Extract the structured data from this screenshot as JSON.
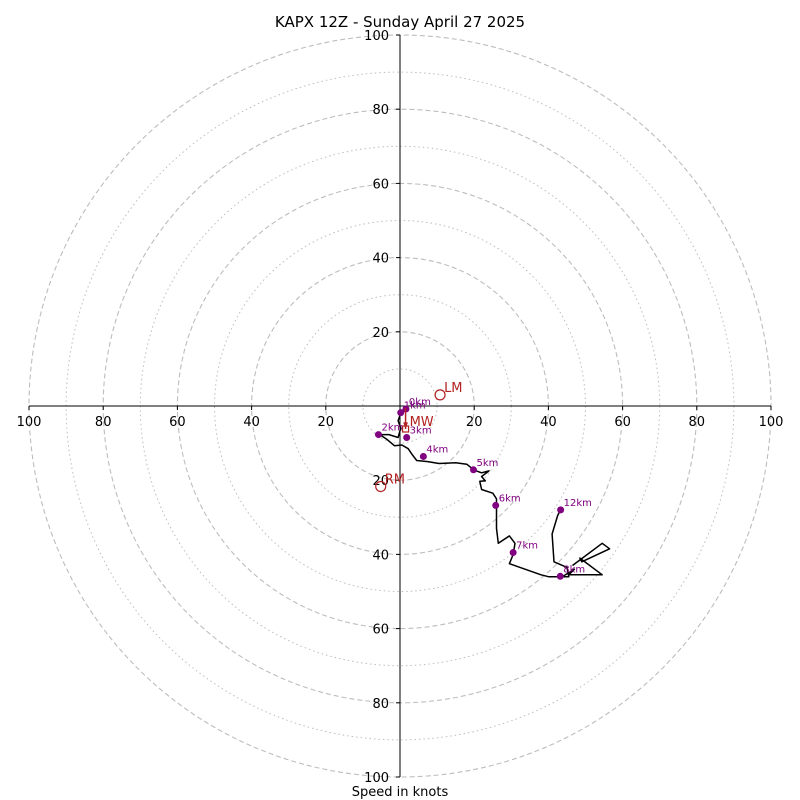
{
  "chart_data": {
    "type": "hodograph",
    "title": "KAPX 12Z - Sunday April 27 2025",
    "xlabel": "Speed in knots",
    "xlim": [
      -100,
      100
    ],
    "ylim": [
      -100,
      100
    ],
    "rings_major": [
      20,
      40,
      60,
      80,
      100
    ],
    "rings_minor": [
      10,
      30,
      50,
      70,
      90
    ],
    "x_ticks": [
      {
        "v": -100,
        "label": "100"
      },
      {
        "v": -80,
        "label": "80"
      },
      {
        "v": -60,
        "label": "60"
      },
      {
        "v": -40,
        "label": "40"
      },
      {
        "v": -20,
        "label": "20"
      },
      {
        "v": 20,
        "label": "20"
      },
      {
        "v": 40,
        "label": "40"
      },
      {
        "v": 60,
        "label": "60"
      },
      {
        "v": 80,
        "label": "80"
      },
      {
        "v": 100,
        "label": "100"
      }
    ],
    "y_ticks": [
      {
        "v": 100,
        "label": "100"
      },
      {
        "v": 80,
        "label": "80"
      },
      {
        "v": 60,
        "label": "60"
      },
      {
        "v": 40,
        "label": "40"
      },
      {
        "v": 20,
        "label": "20"
      },
      {
        "v": -20,
        "label": "20"
      },
      {
        "v": -40,
        "label": "40"
      },
      {
        "v": -60,
        "label": "60"
      },
      {
        "v": -80,
        "label": "80"
      },
      {
        "v": -100,
        "label": "100"
      }
    ],
    "grid": true,
    "trace": [
      [
        1.6,
        -0.8
      ],
      [
        0.2,
        -2.0
      ],
      [
        -0.5,
        -4.0
      ],
      [
        0.2,
        -6.0
      ],
      [
        -0.5,
        -8.5
      ],
      [
        -3.0,
        -7.7
      ],
      [
        -5.5,
        -7.7
      ],
      [
        -3.5,
        -9.0
      ],
      [
        -1.5,
        -10.7
      ],
      [
        0.5,
        -10.5
      ],
      [
        2.2,
        -11.5
      ],
      [
        3.2,
        -13.0
      ],
      [
        4.5,
        -14.7
      ],
      [
        7.5,
        -15.0
      ],
      [
        10.5,
        -15.5
      ],
      [
        15.0,
        -15.3
      ],
      [
        18.0,
        -15.7
      ],
      [
        20.0,
        -17.3
      ],
      [
        22.0,
        -18.0
      ],
      [
        24.0,
        -17.5
      ],
      [
        22.0,
        -19.0
      ],
      [
        23.0,
        -20.2
      ],
      [
        21.5,
        -20.3
      ],
      [
        22.0,
        -22.5
      ],
      [
        25.0,
        -23.5
      ],
      [
        26.0,
        -25.0
      ],
      [
        26.0,
        -28.5
      ],
      [
        26.0,
        -33.0
      ],
      [
        26.5,
        -37.0
      ],
      [
        29.5,
        -35.0
      ],
      [
        31.0,
        -37.0
      ],
      [
        30.5,
        -40.0
      ],
      [
        29.5,
        -42.5
      ],
      [
        38.0,
        -45.5
      ],
      [
        40.0,
        -46.0
      ],
      [
        43.0,
        -46.0
      ],
      [
        45.5,
        -46.0
      ],
      [
        45.0,
        -43.5
      ],
      [
        41.5,
        -42.0
      ],
      [
        41.0,
        -34.5
      ],
      [
        42.5,
        -29.5
      ],
      [
        43.3,
        -28.0
      ]
    ],
    "trace2": [
      [
        43.3,
        -46.3
      ],
      [
        47.0,
        -44.0
      ],
      [
        45.5,
        -45.5
      ],
      [
        54.5,
        -45.5
      ],
      [
        48.5,
        -41.0
      ],
      [
        49.0,
        -42.0
      ],
      [
        56.5,
        -38.5
      ],
      [
        54.5,
        -37.0
      ],
      [
        46.5,
        -43.0
      ]
    ],
    "height_markers": [
      {
        "label": "0km",
        "u": 1.6,
        "v": -0.8
      },
      {
        "label": "1km",
        "u": 0.2,
        "v": -1.8
      },
      {
        "label": "2km",
        "u": -5.8,
        "v": -7.7
      },
      {
        "label": "3km",
        "u": 1.8,
        "v": -8.5
      },
      {
        "label": "4km",
        "u": 6.3,
        "v": -13.6
      },
      {
        "label": "5km",
        "u": 19.8,
        "v": -17.2
      },
      {
        "label": "6km",
        "u": 25.8,
        "v": -26.8
      },
      {
        "label": "7km",
        "u": 30.5,
        "v": -39.5
      },
      {
        "label": "8km",
        "u": 43.2,
        "v": -45.9
      },
      {
        "label": "12km",
        "u": 43.3,
        "v": -28.0
      }
    ],
    "motions": [
      {
        "label": "LM",
        "u": 10.8,
        "v": 3.0
      },
      {
        "label": "RM",
        "u": -5.2,
        "v": -21.7
      },
      {
        "label": "MW",
        "u": 1.5,
        "v": -6.2
      }
    ],
    "mw_arrow_from": [
      1.5,
      -0.5
    ],
    "colors": {
      "trace": "#000000",
      "height_marker": "#800080",
      "storm_motion": "#b22222",
      "grid": "#bdbdbd"
    }
  }
}
